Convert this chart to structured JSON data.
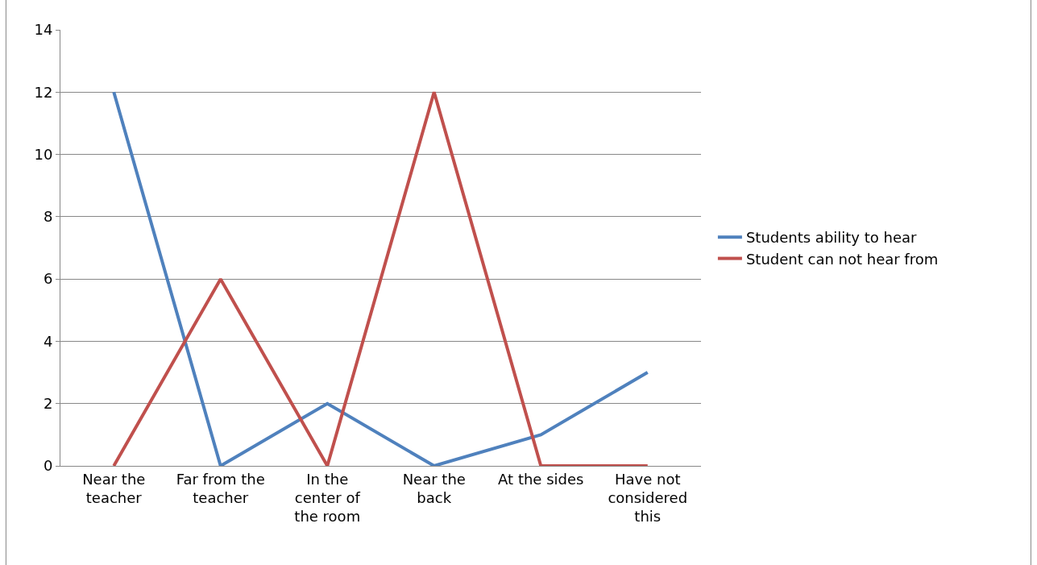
{
  "chart_data": {
    "type": "line",
    "categories": [
      "Near the teacher",
      "Far from the teacher",
      "In the center of the room",
      "Near the back",
      "At the sides",
      "Have not considered this"
    ],
    "series": [
      {
        "name": "Students ability to hear",
        "color": "#4f81bd",
        "values": [
          12,
          0,
          2,
          0,
          1,
          3
        ]
      },
      {
        "name": "Student can not hear from",
        "color": "#c0504d",
        "values": [
          0,
          6,
          0,
          12,
          0,
          0
        ]
      }
    ],
    "ylim": [
      0,
      14
    ],
    "yticks": [
      0,
      2,
      4,
      6,
      8,
      10,
      12,
      14
    ],
    "grid": "y",
    "legend": "right",
    "marker": "none",
    "line_style": "solid"
  }
}
